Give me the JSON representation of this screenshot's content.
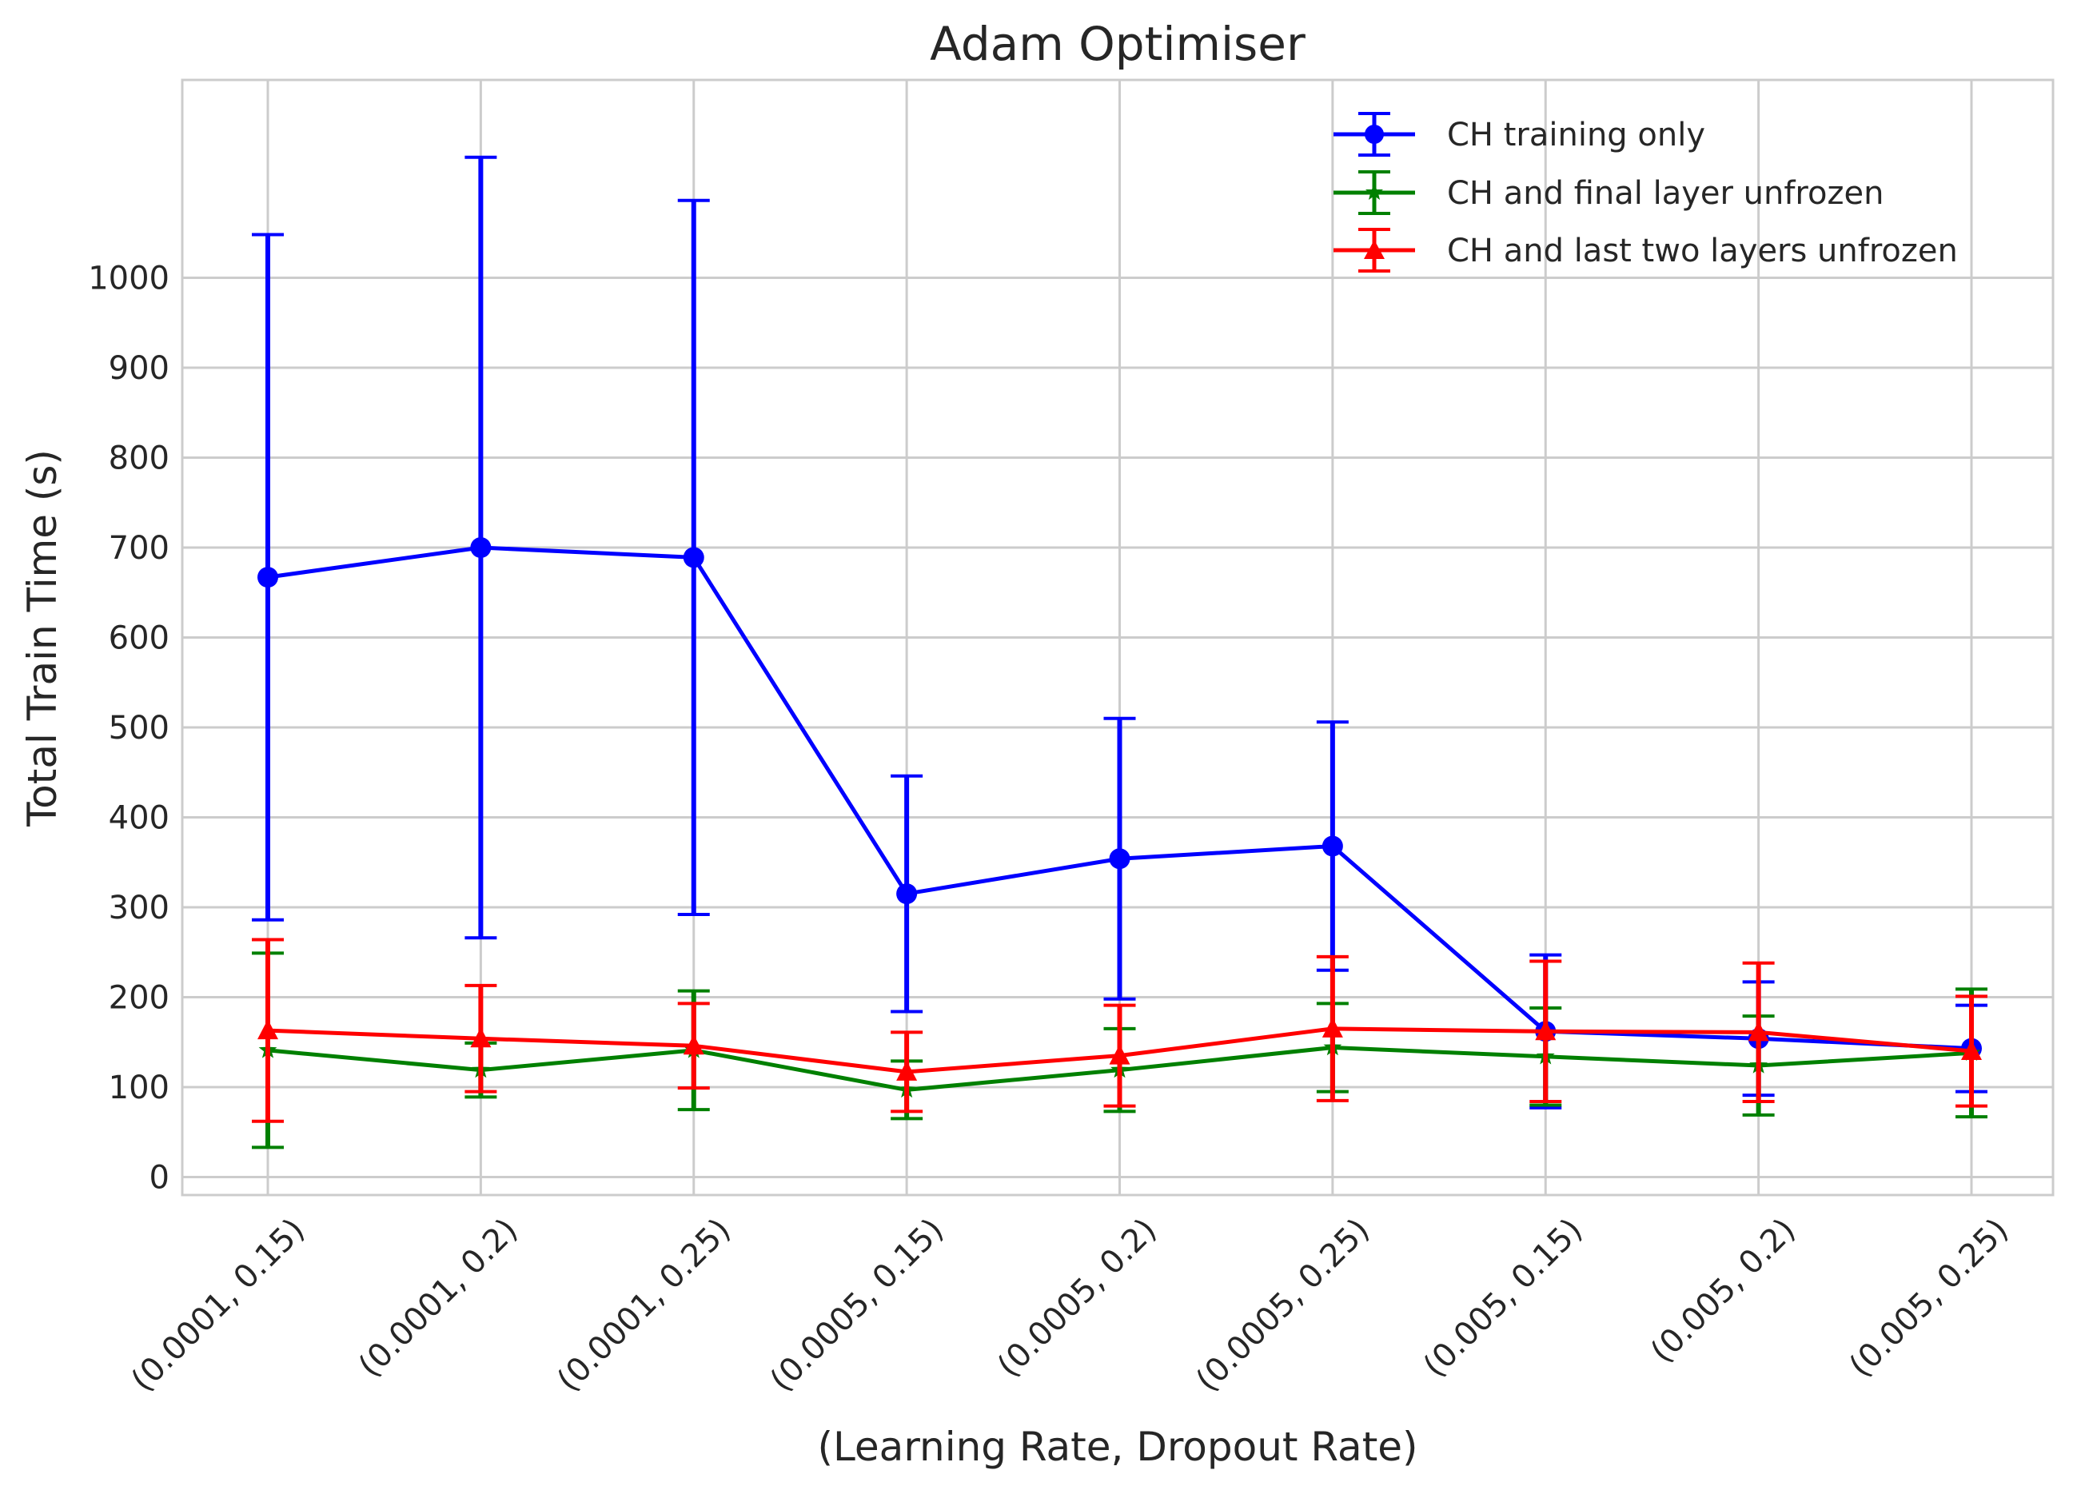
{
  "chart_data": {
    "type": "line",
    "title": "Adam Optimiser",
    "xlabel": "(Learning Rate, Dropout Rate)",
    "ylabel": "Total Train Time (s)",
    "categories": [
      "(0.0001, 0.15)",
      "(0.0001, 0.2)",
      "(0.0001, 0.25)",
      "(0.0005, 0.15)",
      "(0.0005, 0.2)",
      "(0.0005, 0.25)",
      "(0.005, 0.15)",
      "(0.005, 0.2)",
      "(0.005, 0.25)"
    ],
    "ylim": [
      -20,
      1220
    ],
    "yticks": [
      0,
      100,
      200,
      300,
      400,
      500,
      600,
      700,
      800,
      900,
      1000
    ],
    "grid": true,
    "legend_position": "top-right",
    "error_bars": true,
    "series": [
      {
        "name": "CH training only",
        "color": "#0000ff",
        "marker": "circle",
        "values": [
          667,
          700,
          689,
          315,
          354,
          368,
          162,
          154,
          143
        ],
        "errors": [
          381,
          434,
          397,
          131,
          156,
          138,
          85,
          63,
          48
        ]
      },
      {
        "name": "CH and final layer unfrozen",
        "color": "#008000",
        "marker": "star",
        "values": [
          141,
          119,
          141,
          97,
          119,
          144,
          134,
          124,
          138
        ],
        "errors": [
          108,
          30,
          66,
          32,
          46,
          49,
          54,
          55,
          71
        ]
      },
      {
        "name": "CH and last two layers unfrozen",
        "color": "#ff0000",
        "marker": "triangle",
        "values": [
          163,
          154,
          146,
          117,
          135,
          165,
          162,
          161,
          140
        ],
        "errors": [
          101,
          59,
          47,
          44,
          56,
          80,
          78,
          77,
          61
        ]
      }
    ]
  }
}
